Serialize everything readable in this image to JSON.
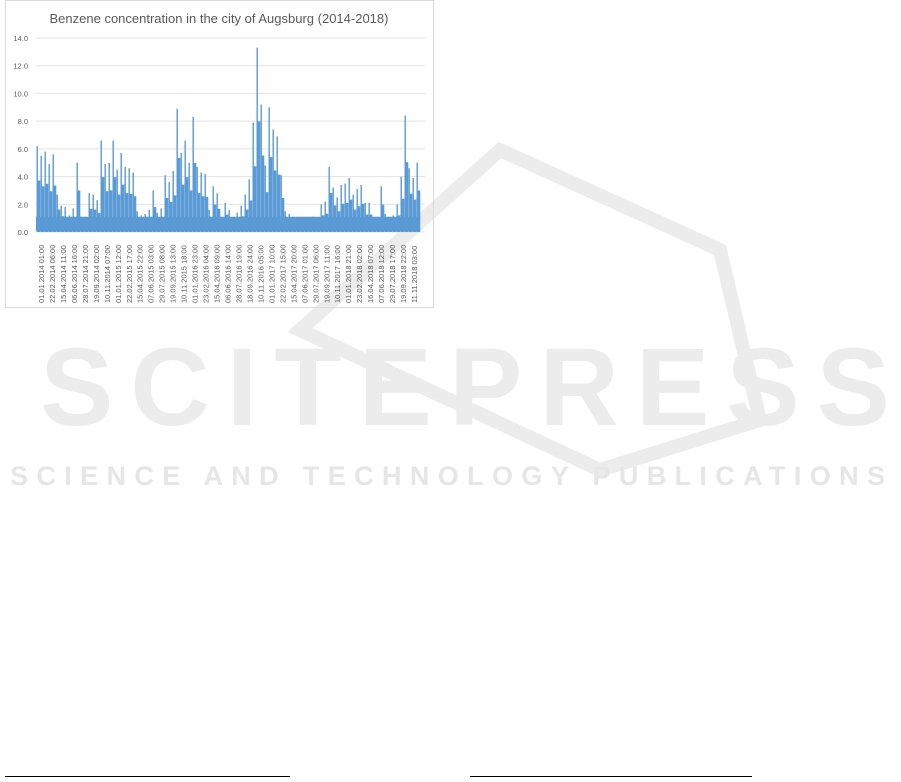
{
  "watermark": {
    "logo_text": "SCITEPRESS",
    "tagline": "SCIENCE AND TECHNOLOGY PUBLICATIONS"
  },
  "chart_data": {
    "type": "line",
    "title": "Benzene concentration in the city of Augsburg (2014-2018)",
    "xlabel": "",
    "ylabel": "",
    "ylim": [
      0,
      14
    ],
    "yticks": [
      "0.0",
      "2.0",
      "4.0",
      "6.0",
      "8.0",
      "10.0",
      "12.0",
      "14.0"
    ],
    "grid": true,
    "color": "#5b9bd5",
    "xticks": [
      "01.01.2014 01:00",
      "22.02.2014 06:00",
      "15.04.2014 11:00",
      "06.06.2014 16:00",
      "28.07.2014 21:00",
      "19.09.2014 02:00",
      "10.11.2014 07:00",
      "01.01.2015 12:00",
      "22.02.2015 17:00",
      "15.04.2015 22:00",
      "07.06.2015 03:00",
      "29.07.2015 08:00",
      "19.09.2015 13:00",
      "10.11.2015 18:00",
      "01.01.2016 23:00",
      "23.02.2016 04:00",
      "15.04.2016 09:00",
      "06.06.2016 14:00",
      "28.07.2016 19:00",
      "18.09.2016 24:00",
      "10.11.2016 05:00",
      "01.01.2017 10:00",
      "22.02.2017 15:00",
      "15.04.2017 20:00",
      "07.06.2017 01:00",
      "29.07.2017 06:00",
      "19.09.2017 11:00",
      "10.11.2017 16:00",
      "01.01.2018 21:00",
      "23.02.2018 02:00",
      "16.04.2018 07:00",
      "07.06.2018 12:00",
      "29.07.2018 17:00",
      "19.09.2018 22:00",
      "11.11.2018 03:00"
    ],
    "peak_values": [
      6.2,
      5.5,
      5.8,
      4.9,
      5.6,
      2.7,
      1.9,
      1.8,
      1.2,
      1.7,
      5.0,
      1.0,
      1.1,
      2.8,
      2.7,
      2.3,
      6.6,
      4.9,
      5.0,
      6.6,
      4.5,
      5.7,
      4.7,
      4.6,
      4.3,
      1.5,
      1.2,
      1.3,
      1.6,
      3.0,
      1.4,
      1.7,
      4.1,
      3.6,
      4.4,
      8.9,
      5.7,
      6.6,
      5.0,
      8.3,
      4.7,
      4.3,
      4.2,
      1.6,
      3.3,
      2.8,
      1.0,
      2.1,
      1.6,
      1.0,
      1.4,
      1.9,
      2.7,
      3.8,
      7.9,
      13.3,
      9.2,
      4.8,
      9.0,
      7.4,
      6.9,
      4.1,
      1.5,
      1.3,
      0.9,
      0.9,
      0.7,
      0.9,
      0.8,
      1.1,
      0.9,
      2.0,
      2.2,
      4.7,
      3.2,
      2.5,
      3.4,
      3.5,
      3.9,
      2.7,
      3.1,
      3.4,
      2.1,
      2.1,
      1.0,
      1.1,
      3.3,
      1.3,
      1.0,
      1.2,
      2.0,
      4.0,
      8.4,
      4.6,
      3.9,
      5.0
    ]
  }
}
